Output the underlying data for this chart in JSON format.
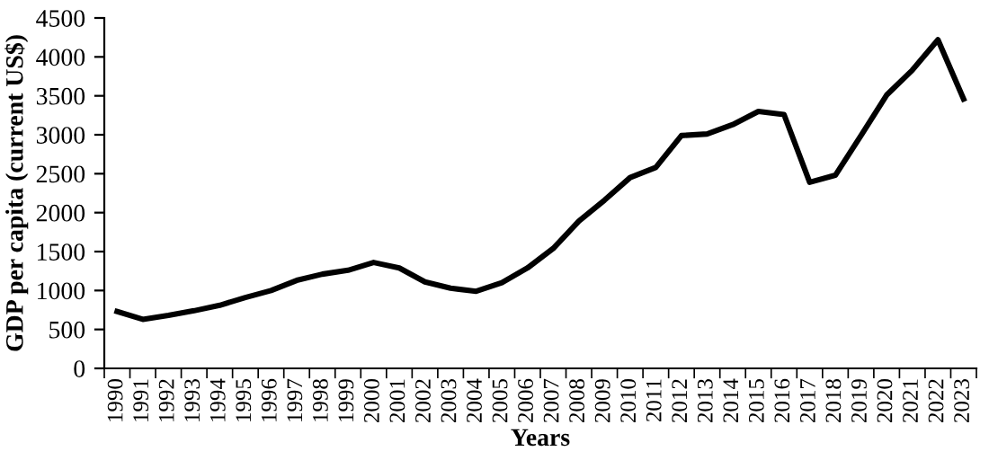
{
  "chart_data": {
    "type": "line",
    "xlabel": "Years",
    "ylabel": "GDP per capita (current US$)",
    "categories": [
      "1990",
      "1991",
      "1992",
      "1993",
      "1994",
      "1995",
      "1996",
      "1997",
      "1998",
      "1999",
      "2000",
      "2001",
      "2002",
      "2003",
      "2004",
      "2005",
      "2006",
      "2007",
      "2008",
      "2009",
      "2010",
      "2011",
      "2012",
      "2013",
      "2014",
      "2015",
      "2016",
      "2017",
      "2018",
      "2019",
      "2020",
      "2021",
      "2022",
      "2023"
    ],
    "series": [
      {
        "color": "#000000",
        "values": [
          730,
          630,
          680,
          740,
          810,
          910,
          1000,
          1130,
          1210,
          1260,
          1360,
          1290,
          1110,
          1030,
          990,
          1100,
          1290,
          1540,
          1890,
          2160,
          2450,
          2580,
          2990,
          3010,
          3130,
          3300,
          3260,
          2390,
          2480,
          2990,
          3510,
          3830,
          4220,
          3460
        ]
      }
    ],
    "ylim": [
      0,
      4500
    ],
    "yticks": [
      0,
      500,
      1000,
      1500,
      2000,
      2500,
      3000,
      3500,
      4000,
      4500
    ],
    "grid": false,
    "legend": false,
    "marker": "none",
    "line_style": "solid"
  }
}
